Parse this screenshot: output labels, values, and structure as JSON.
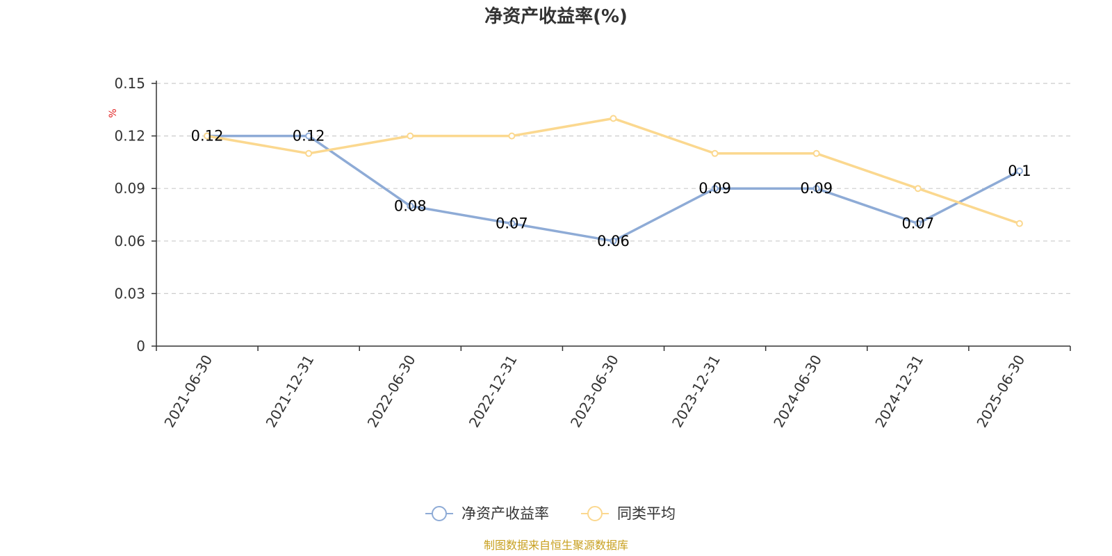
{
  "chart_data": {
    "type": "line",
    "title": "净资产收益率(%)",
    "ylabel": "%",
    "xlabel": "",
    "categories": [
      "2021-06-30",
      "2021-12-31",
      "2022-06-30",
      "2022-12-31",
      "2023-06-30",
      "2023-12-31",
      "2024-06-30",
      "2024-12-31",
      "2025-06-30"
    ],
    "ylim": [
      0,
      0.15
    ],
    "yticks": [
      "0",
      "0.03",
      "0.06",
      "0.09",
      "0.12",
      "0.15"
    ],
    "grid": true,
    "legend_position": "bottom-center",
    "series": [
      {
        "name": "净资产收益率",
        "color": "#8eabd6",
        "values": [
          0.12,
          0.12,
          0.08,
          0.07,
          0.06,
          0.09,
          0.09,
          0.07,
          0.1
        ],
        "labels": [
          "0.12",
          "0.12",
          "0.08",
          "0.07",
          "0.06",
          "0.09",
          "0.09",
          "0.07",
          "0.1"
        ]
      },
      {
        "name": "同类平均",
        "color": "#fbd88f",
        "values": [
          0.12,
          0.11,
          0.12,
          0.12,
          0.13,
          0.11,
          0.11,
          0.09,
          0.07
        ]
      }
    ]
  },
  "source_note": "制图数据来自恒生聚源数据库"
}
